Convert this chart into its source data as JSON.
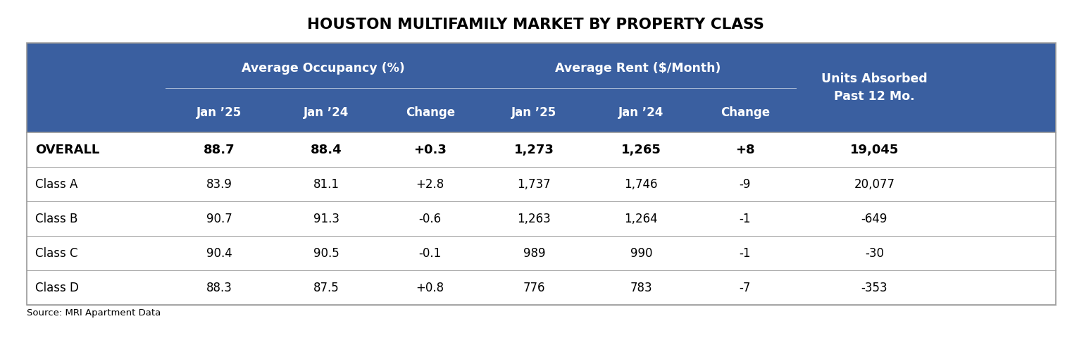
{
  "title": "HOUSTON MULTIFAMILY MARKET BY PROPERTY CLASS",
  "header_bg_color": "#3A5FA0",
  "header_text_color": "#FFFFFF",
  "table_bg_color": "#FFFFFF",
  "border_color": "#999999",
  "source_text": "Source: MRI Apartment Data",
  "rows": [
    {
      "label": "OVERALL",
      "occ_jan25": "88.7",
      "occ_jan24": "88.4",
      "occ_change": "+0.3",
      "rent_jan25": "1,273",
      "rent_jan24": "1,265",
      "rent_change": "+8",
      "units_absorbed": "19,045",
      "bold": true
    },
    {
      "label": "Class A",
      "occ_jan25": "83.9",
      "occ_jan24": "81.1",
      "occ_change": "+2.8",
      "rent_jan25": "1,737",
      "rent_jan24": "1,746",
      "rent_change": "-9",
      "units_absorbed": "20,077",
      "bold": false
    },
    {
      "label": "Class B",
      "occ_jan25": "90.7",
      "occ_jan24": "91.3",
      "occ_change": "-0.6",
      "rent_jan25": "1,263",
      "rent_jan24": "1,264",
      "rent_change": "-1",
      "units_absorbed": "-649",
      "bold": false
    },
    {
      "label": "Class C",
      "occ_jan25": "90.4",
      "occ_jan24": "90.5",
      "occ_change": "-0.1",
      "rent_jan25": "989",
      "rent_jan24": "990",
      "rent_change": "-1",
      "units_absorbed": "-30",
      "bold": false
    },
    {
      "label": "Class D",
      "occ_jan25": "88.3",
      "occ_jan24": "87.5",
      "occ_change": "+0.8",
      "rent_jan25": "776",
      "rent_jan24": "783",
      "rent_change": "-7",
      "units_absorbed": "-353",
      "bold": false
    }
  ],
  "figsize": [
    15.22,
    4.9
  ],
  "dpi": 100
}
